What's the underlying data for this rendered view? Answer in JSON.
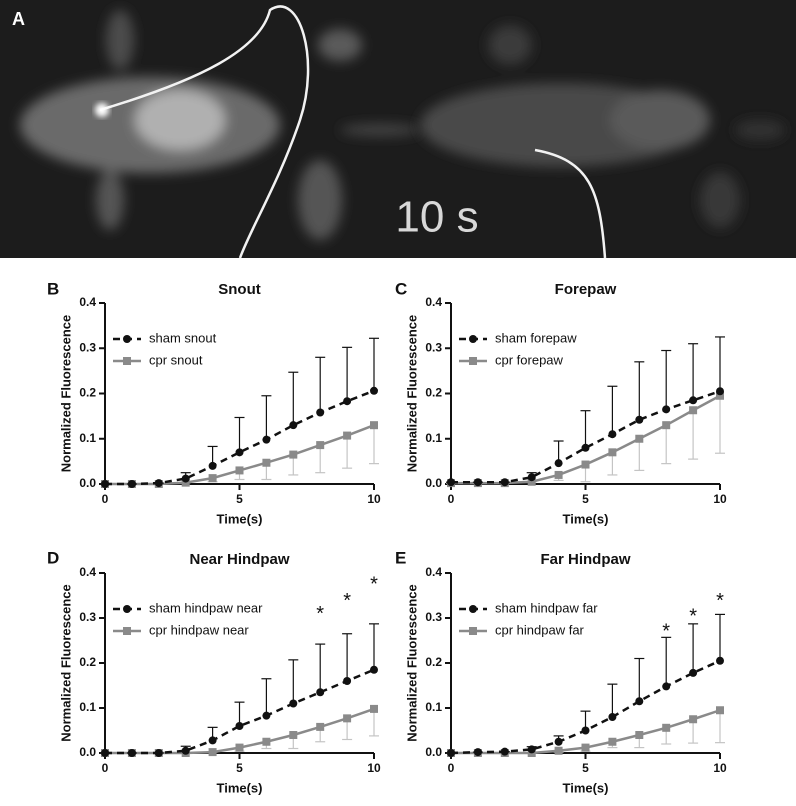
{
  "photo": {
    "panel": "A",
    "timestamp": "10 s"
  },
  "chart_data": [
    {
      "type": "line",
      "panel": "B",
      "title": "Snout",
      "xlabel": "Time(s)",
      "ylabel": "Normalized Fluorescence",
      "x": [
        0,
        1,
        2,
        3,
        4,
        5,
        6,
        7,
        8,
        9,
        10
      ],
      "xlim": [
        0,
        10
      ],
      "xticks": [
        0,
        5,
        10
      ],
      "ylim": [
        0,
        0.4
      ],
      "yticks": [
        {
          "value": 0,
          "label": "0.0"
        },
        0.1,
        0.2,
        0.3,
        0.4
      ],
      "legend": "upper left",
      "series": [
        {
          "name": "sham snout",
          "color": "#111111",
          "style": "dashed",
          "marker": "circle",
          "error_direction": "up",
          "values": [
            0,
            0,
            0.002,
            0.012,
            0.04,
            0.07,
            0.098,
            0.13,
            0.158,
            0.183,
            0.206
          ],
          "errors": [
            0,
            0,
            0,
            0.013,
            0.043,
            0.077,
            0.097,
            0.117,
            0.122,
            0.119,
            0.116
          ]
        },
        {
          "name": "cpr snout",
          "color": "#8a8a8a",
          "style": "solid",
          "marker": "square",
          "error_direction": "down",
          "values": [
            0,
            0,
            0,
            0.003,
            0.013,
            0.03,
            0.047,
            0.065,
            0.086,
            0.107,
            0.13
          ],
          "errors": [
            0,
            0,
            0,
            0,
            0.008,
            0.02,
            0.037,
            0.045,
            0.061,
            0.072,
            0.085
          ]
        }
      ]
    },
    {
      "type": "line",
      "panel": "C",
      "title": "Forepaw",
      "xlabel": "Time(s)",
      "ylabel": "Normalized Fluorescence",
      "x": [
        0,
        1,
        2,
        3,
        4,
        5,
        6,
        7,
        8,
        9,
        10
      ],
      "xlim": [
        0,
        10
      ],
      "xticks": [
        0,
        5,
        10
      ],
      "ylim": [
        0,
        0.4
      ],
      "yticks": [
        {
          "value": 0,
          "label": "0.0"
        },
        0.1,
        0.2,
        0.3,
        0.4
      ],
      "legend": "upper left",
      "series": [
        {
          "name": "sham forepaw",
          "color": "#111111",
          "style": "dashed",
          "marker": "circle",
          "error_direction": "up",
          "values": [
            0.004,
            0.004,
            0.004,
            0.015,
            0.046,
            0.08,
            0.11,
            0.142,
            0.165,
            0.185,
            0.205
          ],
          "errors": [
            0,
            0,
            0,
            0.01,
            0.049,
            0.082,
            0.106,
            0.128,
            0.13,
            0.125,
            0.12
          ]
        },
        {
          "name": "cpr forepaw",
          "color": "#8a8a8a",
          "style": "solid",
          "marker": "square",
          "error_direction": "down",
          "values": [
            0.002,
            0.002,
            0.002,
            0.005,
            0.02,
            0.043,
            0.07,
            0.1,
            0.13,
            0.163,
            0.195
          ],
          "errors": [
            0,
            0,
            0,
            0,
            0.012,
            0.038,
            0.05,
            0.07,
            0.085,
            0.108,
            0.127
          ]
        }
      ]
    },
    {
      "type": "line",
      "panel": "D",
      "title": "Near Hindpaw",
      "xlabel": "Time(s)",
      "ylabel": "Normalized Fluorescence",
      "x": [
        0,
        1,
        2,
        3,
        4,
        5,
        6,
        7,
        8,
        9,
        10
      ],
      "xlim": [
        0,
        10
      ],
      "xticks": [
        0,
        5,
        10
      ],
      "ylim": [
        0,
        0.4
      ],
      "yticks": [
        {
          "value": 0,
          "label": "0.0"
        },
        0.1,
        0.2,
        0.3,
        0.4
      ],
      "legend": "upper left",
      "annotations": [
        {
          "text": "*",
          "x": 8,
          "y": 0.318
        },
        {
          "text": "*",
          "x": 9,
          "y": 0.347
        },
        {
          "text": "*",
          "x": 10,
          "y": 0.384
        }
      ],
      "series": [
        {
          "name": "sham hindpaw near",
          "color": "#111111",
          "style": "dashed",
          "marker": "circle",
          "error_direction": "up",
          "values": [
            0,
            0,
            0,
            0.005,
            0.028,
            0.06,
            0.083,
            0.11,
            0.135,
            0.16,
            0.185
          ],
          "errors": [
            0,
            0,
            0,
            0.01,
            0.029,
            0.053,
            0.082,
            0.097,
            0.107,
            0.105,
            0.102
          ]
        },
        {
          "name": "cpr hindpaw near",
          "color": "#8a8a8a",
          "style": "solid",
          "marker": "square",
          "error_direction": "down",
          "values": [
            0,
            0,
            0,
            0,
            0.002,
            0.012,
            0.025,
            0.04,
            0.058,
            0.077,
            0.098
          ],
          "errors": [
            0,
            0,
            0,
            0,
            0,
            0.008,
            0.015,
            0.03,
            0.033,
            0.047,
            0.06
          ]
        }
      ]
    },
    {
      "type": "line",
      "panel": "E",
      "title": "Far Hindpaw",
      "xlabel": "Time(s)",
      "ylabel": "Normalized Fluorescence",
      "x": [
        0,
        1,
        2,
        3,
        4,
        5,
        6,
        7,
        8,
        9,
        10
      ],
      "xlim": [
        0,
        10
      ],
      "xticks": [
        0,
        5,
        10
      ],
      "ylim": [
        0,
        0.4
      ],
      "yticks": [
        {
          "value": 0,
          "label": "0.0"
        },
        0.1,
        0.2,
        0.3,
        0.4
      ],
      "legend": "upper left",
      "annotations": [
        {
          "text": "*",
          "x": 8,
          "y": 0.28
        },
        {
          "text": "*",
          "x": 9,
          "y": 0.313
        },
        {
          "text": "*",
          "x": 10,
          "y": 0.347
        }
      ],
      "series": [
        {
          "name": "sham hindpaw far",
          "color": "#111111",
          "style": "dashed",
          "marker": "circle",
          "error_direction": "up",
          "values": [
            0,
            0.002,
            0.003,
            0.008,
            0.025,
            0.05,
            0.08,
            0.115,
            0.148,
            0.178,
            0.205
          ],
          "errors": [
            0,
            0,
            0,
            0.006,
            0.013,
            0.043,
            0.073,
            0.095,
            0.109,
            0.109,
            0.103
          ]
        },
        {
          "name": "cpr hindpaw far",
          "color": "#8a8a8a",
          "style": "solid",
          "marker": "square",
          "error_direction": "down",
          "values": [
            0,
            0,
            0,
            0,
            0.005,
            0.012,
            0.025,
            0.04,
            0.056,
            0.075,
            0.095
          ],
          "errors": [
            0,
            0,
            0,
            0,
            0.003,
            0.008,
            0.013,
            0.028,
            0.036,
            0.053,
            0.072
          ]
        }
      ]
    }
  ]
}
